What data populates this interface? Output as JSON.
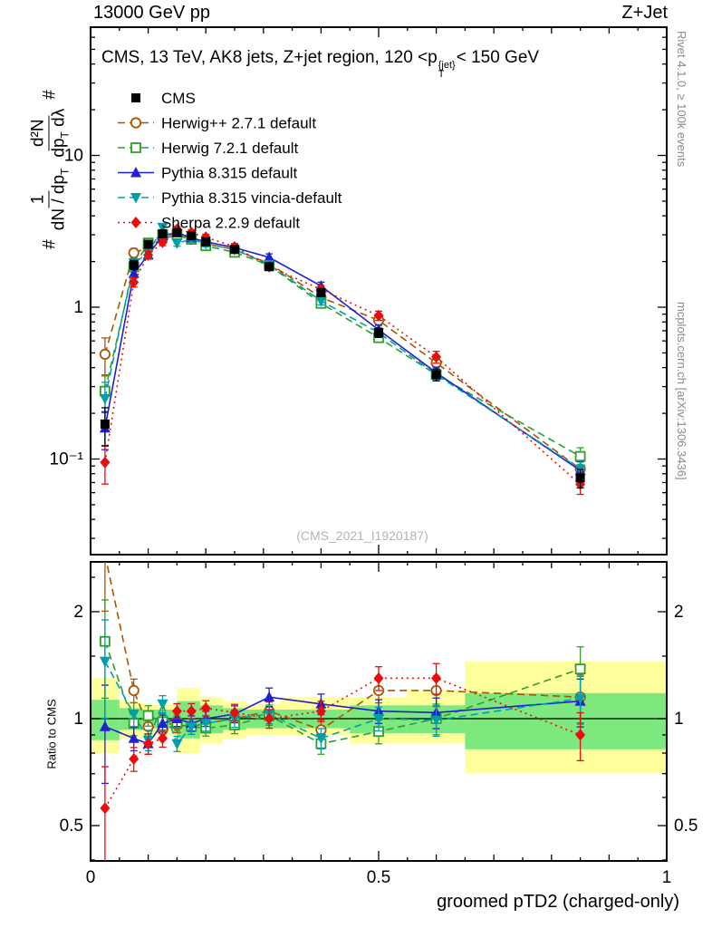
{
  "header": {
    "beam_energy": "13000 GeV pp",
    "process": "Z+Jet"
  },
  "side_notes": {
    "rivet": "Rivet 4.1.0, ≥ 100k events",
    "mcplots": "mcplots.cern.ch [arXiv:1306.3436]"
  },
  "plot": {
    "title": {
      "prefix": "CMS, 13 TeV, AK8 jets, Z+jet region, 120 <p",
      "sup": "{jet}",
      "sub": "T",
      "suffix": "< 150 GeV"
    },
    "watermark": "(CMS_2021_I1920187)",
    "ylabel": {
      "hash": "#",
      "f1_num": "1",
      "f1_den": "dN / dp",
      "f1_den_sub": "T",
      "f2_num": "d²N",
      "f2_den": "dp",
      "f2_den_sub": "T",
      "f2_den_tail": " dλ"
    }
  },
  "chart_data": {
    "type": "line",
    "title": "CMS, 13 TeV, AK8 jets, Z+jet region, 120 <p_T^{jet}< 150 GeV",
    "xlabel": "groomed pTD2 (charged-only)",
    "ylabel": "1/(dN/dp_T) d²N/(dp_T dλ)",
    "xlim": [
      0,
      1
    ],
    "ylim": [
      0.023,
      70
    ],
    "yscale": "log",
    "x": [
      0.025,
      0.075,
      0.1,
      0.125,
      0.15,
      0.175,
      0.2,
      0.25,
      0.31,
      0.4,
      0.5,
      0.6,
      0.85
    ],
    "rel_err": [
      0.28,
      0.07,
      0.06,
      0.05,
      0.045,
      0.045,
      0.045,
      0.05,
      0.055,
      0.06,
      0.07,
      0.09,
      0.14
    ],
    "xticks": [
      {
        "v": 0,
        "label": "0"
      },
      {
        "v": 0.5,
        "label": "0.5"
      },
      {
        "v": 1,
        "label": "1"
      }
    ],
    "yticks": [
      {
        "v": 10,
        "label": "10"
      },
      {
        "v": 1,
        "label": "1"
      },
      {
        "v": 0.1,
        "label": "10⁻¹"
      }
    ],
    "series": [
      {
        "name": "CMS",
        "color": "#000000",
        "marker": "square-filled",
        "line_style": "none",
        "values": [
          0.17,
          1.9,
          2.6,
          3.05,
          3.1,
          2.95,
          2.7,
          2.4,
          1.85,
          1.25,
          0.68,
          0.36,
          0.075
        ],
        "ratio": null
      },
      {
        "name": "Herwig++ 2.7.1 default",
        "color": "#aa5500",
        "marker": "circle-open",
        "line_style": "dashed",
        "values": [
          0.49,
          2.28,
          2.47,
          2.84,
          2.98,
          2.8,
          2.62,
          2.4,
          1.94,
          1.16,
          0.82,
          0.43,
          0.086
        ],
        "ratio": [
          2.9,
          1.2,
          0.95,
          0.93,
          0.96,
          0.95,
          0.97,
          1.0,
          1.05,
          0.93,
          1.2,
          1.2,
          1.15
        ]
      },
      {
        "name": "Herwig 7.2.1 default",
        "color": "#2ca02c",
        "marker": "square-open",
        "line_style": "dashed",
        "values": [
          0.28,
          1.84,
          2.65,
          2.99,
          3.01,
          2.8,
          2.54,
          2.3,
          1.89,
          1.06,
          0.63,
          0.36,
          0.104
        ],
        "ratio": [
          1.65,
          0.97,
          1.02,
          0.98,
          0.97,
          0.95,
          0.94,
          0.96,
          1.02,
          0.85,
          0.92,
          1.0,
          1.38
        ]
      },
      {
        "name": "Pythia 8.315 default",
        "color": "#1f1fd4",
        "marker": "triangle-up-filled",
        "line_style": "solid",
        "values": [
          0.16,
          1.67,
          2.21,
          2.96,
          3.1,
          2.86,
          2.7,
          2.47,
          2.13,
          1.38,
          0.71,
          0.37,
          0.084
        ],
        "ratio": [
          0.95,
          0.88,
          0.85,
          0.97,
          1.0,
          0.97,
          1.0,
          1.03,
          1.15,
          1.1,
          1.05,
          1.04,
          1.12
        ]
      },
      {
        "name": "Pythia 8.315 vincia-default",
        "color": "#00a0a8",
        "marker": "triangle-down-filled",
        "line_style": "dashed",
        "values": [
          0.25,
          1.96,
          2.26,
          3.36,
          2.64,
          2.8,
          2.62,
          2.4,
          1.91,
          1.1,
          0.68,
          0.36,
          0.086
        ],
        "ratio": [
          1.45,
          1.03,
          0.87,
          1.1,
          0.85,
          0.95,
          0.97,
          1.0,
          1.03,
          0.88,
          1.0,
          0.99,
          1.14
        ]
      },
      {
        "name": "Sherpa 2.2.9 default",
        "color": "#ea0d0d",
        "marker": "diamond-filled",
        "line_style": "dotted",
        "values": [
          0.095,
          1.46,
          2.21,
          2.68,
          3.26,
          3.1,
          2.89,
          2.5,
          1.85,
          1.31,
          0.88,
          0.47,
          0.068
        ],
        "ratio": [
          0.56,
          0.77,
          0.85,
          0.88,
          1.05,
          1.05,
          1.07,
          1.04,
          1.0,
          1.05,
          1.3,
          1.3,
          0.9
        ]
      }
    ],
    "ratio_panel": {
      "ylabel": "Ratio to CMS",
      "ylim": [
        0.4,
        2.76
      ],
      "yscale": "log",
      "yticks": [
        {
          "v": 0.5,
          "label": "0.5"
        },
        {
          "v": 1,
          "label": "1"
        },
        {
          "v": 2,
          "label": "2"
        }
      ],
      "minor_yticks": [
        0.4,
        0.6,
        0.7,
        0.8,
        0.9,
        1.5,
        2.5
      ],
      "band_edges": [
        0,
        0.05,
        0.09,
        0.15,
        0.19,
        0.23,
        0.27,
        0.33,
        0.45,
        0.55,
        0.65,
        1.0
      ],
      "yellow_lo": [
        0.8,
        0.88,
        0.9,
        0.8,
        0.85,
        0.88,
        0.9,
        0.9,
        0.85,
        0.85,
        0.7
      ],
      "yellow_hi": [
        1.3,
        1.12,
        1.1,
        1.22,
        1.15,
        1.12,
        1.1,
        1.15,
        1.15,
        1.2,
        1.45
      ],
      "green_lo": [
        0.87,
        0.93,
        0.94,
        0.88,
        0.91,
        0.93,
        0.94,
        0.94,
        0.91,
        0.91,
        0.82
      ],
      "green_hi": [
        1.13,
        1.07,
        1.06,
        1.12,
        1.09,
        1.07,
        1.06,
        1.06,
        1.09,
        1.09,
        1.18
      ],
      "band_colors": {
        "yellow": "#ffff9c",
        "green": "#7de87d"
      }
    }
  }
}
